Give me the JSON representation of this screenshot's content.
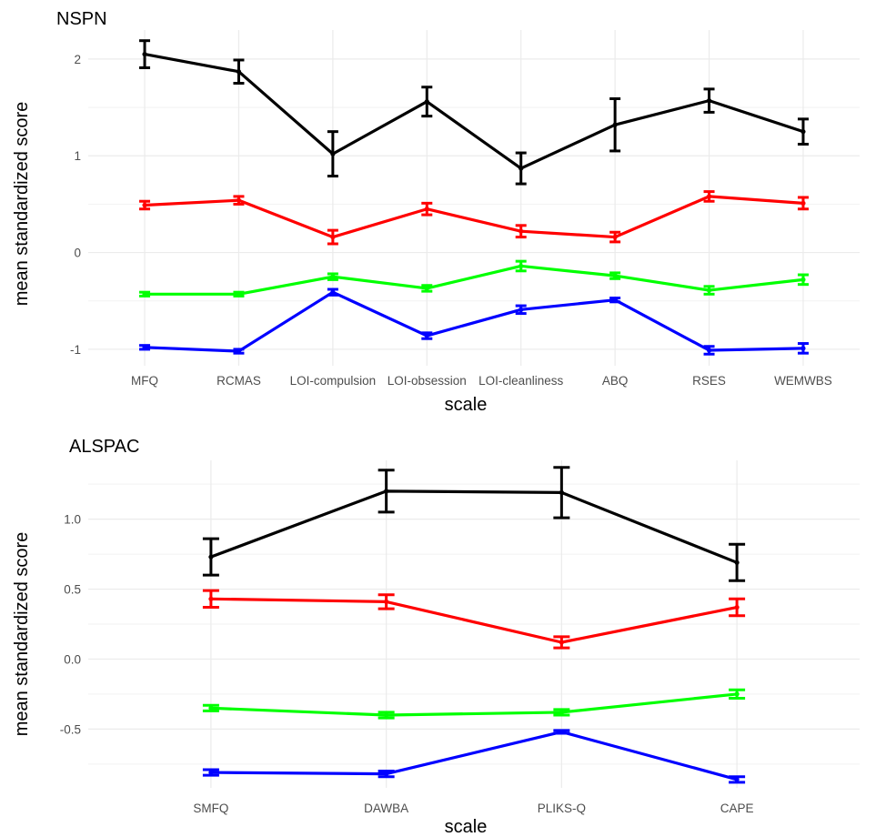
{
  "chart_data": [
    {
      "type": "line",
      "title": "NSPN",
      "xlabel": "scale",
      "ylabel": "mean standardized score",
      "categories": [
        "MFQ",
        "RCMAS",
        "LOI-compulsion",
        "LOI-obsession",
        "LOI-cleanliness",
        "ABQ",
        "RSES",
        "WEMWBS"
      ],
      "ylim": [
        -1.17,
        2.3
      ],
      "yticks": [
        -1,
        0,
        1,
        2
      ],
      "ytick_labels": [
        "-1",
        "0",
        "1",
        "2"
      ],
      "grid": true,
      "series": [
        {
          "color": "#000000",
          "values": [
            2.05,
            1.87,
            1.02,
            1.56,
            0.87,
            1.32,
            1.57,
            1.25
          ],
          "lower": [
            1.91,
            1.75,
            0.79,
            1.41,
            0.71,
            1.05,
            1.45,
            1.12
          ],
          "upper": [
            2.19,
            1.99,
            1.25,
            1.71,
            1.03,
            1.59,
            1.69,
            1.38
          ]
        },
        {
          "color": "#ff0000",
          "values": [
            0.49,
            0.54,
            0.16,
            0.45,
            0.22,
            0.16,
            0.58,
            0.51
          ],
          "lower": [
            0.45,
            0.5,
            0.09,
            0.39,
            0.16,
            0.11,
            0.53,
            0.45
          ],
          "upper": [
            0.53,
            0.58,
            0.23,
            0.51,
            0.28,
            0.21,
            0.63,
            0.57
          ]
        },
        {
          "color": "#00ff00",
          "values": [
            -0.43,
            -0.43,
            -0.25,
            -0.37,
            -0.14,
            -0.24,
            -0.39,
            -0.28
          ],
          "lower": [
            -0.45,
            -0.45,
            -0.28,
            -0.4,
            -0.19,
            -0.27,
            -0.43,
            -0.33
          ],
          "upper": [
            -0.41,
            -0.41,
            -0.22,
            -0.34,
            -0.09,
            -0.21,
            -0.35,
            -0.23
          ]
        },
        {
          "color": "#0000ff",
          "values": [
            -0.98,
            -1.02,
            -0.41,
            -0.86,
            -0.59,
            -0.49,
            -1.01,
            -0.99
          ],
          "lower": [
            -1.0,
            -1.04,
            -0.44,
            -0.89,
            -0.63,
            -0.51,
            -1.05,
            -1.04
          ],
          "upper": [
            -0.96,
            -1.0,
            -0.38,
            -0.83,
            -0.55,
            -0.47,
            -0.97,
            -0.94
          ]
        }
      ]
    },
    {
      "type": "line",
      "title": "ALSPAC",
      "xlabel": "scale",
      "ylabel": "mean standardized score",
      "categories": [
        "SMFQ",
        "DAWBA",
        "PLIKS-Q",
        "CAPE"
      ],
      "ylim": [
        -0.92,
        1.42
      ],
      "yticks": [
        -0.5,
        0.0,
        0.5,
        1.0
      ],
      "ytick_labels": [
        "-0.5",
        "0.0",
        "0.5",
        "1.0"
      ],
      "grid": true,
      "series": [
        {
          "color": "#000000",
          "values": [
            0.73,
            1.2,
            1.19,
            0.69
          ],
          "lower": [
            0.6,
            1.05,
            1.01,
            0.56
          ],
          "upper": [
            0.86,
            1.35,
            1.37,
            0.82
          ]
        },
        {
          "color": "#ff0000",
          "values": [
            0.43,
            0.41,
            0.12,
            0.37
          ],
          "lower": [
            0.37,
            0.36,
            0.08,
            0.31
          ],
          "upper": [
            0.49,
            0.46,
            0.16,
            0.43
          ]
        },
        {
          "color": "#00ff00",
          "values": [
            -0.35,
            -0.4,
            -0.38,
            -0.25
          ],
          "lower": [
            -0.37,
            -0.42,
            -0.4,
            -0.28
          ],
          "upper": [
            -0.33,
            -0.38,
            -0.36,
            -0.22
          ]
        },
        {
          "color": "#0000ff",
          "values": [
            -0.81,
            -0.82,
            -0.52,
            -0.86
          ],
          "lower": [
            -0.83,
            -0.84,
            -0.53,
            -0.88
          ],
          "upper": [
            -0.79,
            -0.8,
            -0.51,
            -0.84
          ]
        }
      ]
    }
  ]
}
